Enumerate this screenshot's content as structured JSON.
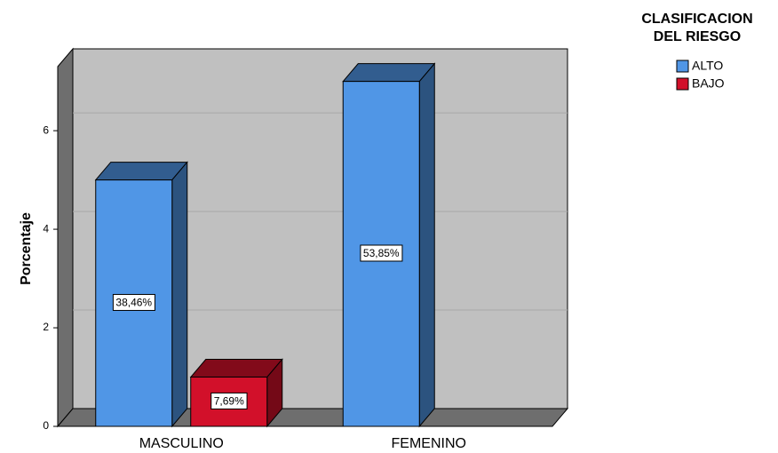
{
  "chart_data": {
    "type": "bar3d",
    "y_label": "Porcentaje",
    "legend_title": [
      "CLASIFICACION",
      "DEL RIESGO"
    ],
    "categories": [
      "MASCULINO",
      "FEMENINO"
    ],
    "series": [
      {
        "name": "ALTO",
        "color": "#5096e6",
        "values": [
          5,
          7
        ],
        "value_labels": [
          "38,46%",
          "53,85%"
        ]
      },
      {
        "name": "BAJO",
        "color": "#d2102a",
        "values": [
          1,
          null
        ],
        "value_labels": [
          "7,69%",
          null
        ]
      }
    ],
    "ylim": [
      0,
      7.3
    ],
    "yticks": [
      0,
      2,
      4,
      6
    ],
    "grid": true
  }
}
